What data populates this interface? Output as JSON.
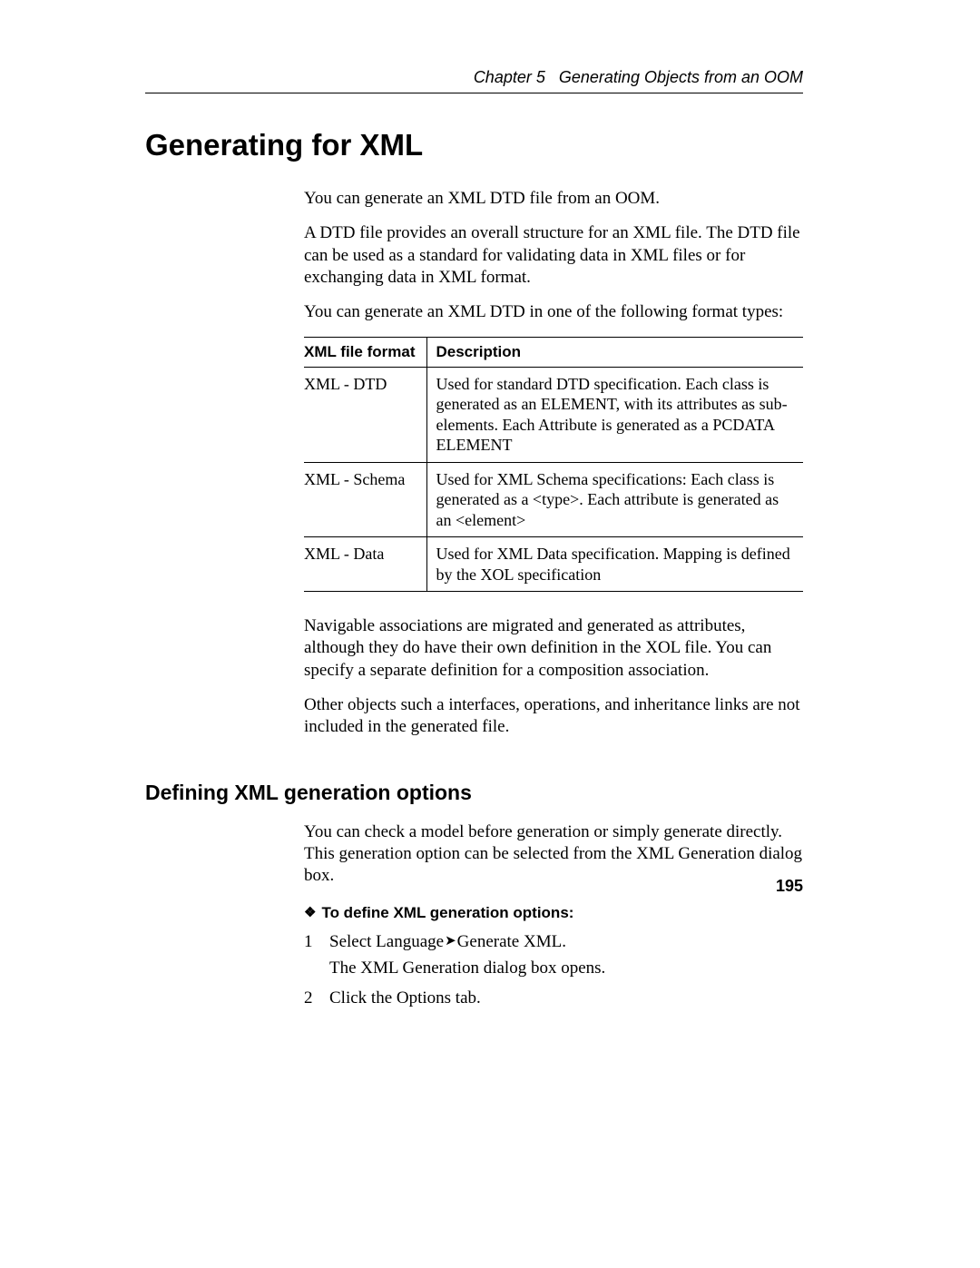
{
  "header": {
    "chapter_label": "Chapter 5",
    "chapter_title": "Generating Objects from an OOM"
  },
  "title": "Generating for XML",
  "paragraphs": {
    "p1": "You can generate an XML DTD file from an OOM.",
    "p2": "A DTD file provides an overall structure for an XML file. The DTD file can be used as a standard for validating data in XML files or for exchanging data in XML format.",
    "p3": "You can generate an XML DTD in one of the following format types:",
    "p4": "Navigable associations are migrated and generated as attributes, although they do have their own definition in the XOL file. You can specify a separate definition for a composition association.",
    "p5": "Other objects such a interfaces, operations, and inheritance links are not included in the generated file."
  },
  "table": {
    "header_format": "XML file format",
    "header_desc": "Description",
    "rows": [
      {
        "format": "XML - DTD",
        "desc": "Used for standard DTD specification. Each class is generated as an ELEMENT, with its attributes as sub-elements. Each Attribute is generated as a PCDATA ELEMENT"
      },
      {
        "format": "XML - Schema",
        "desc": "Used for XML Schema specifications: Each class is generated as a <type>. Each attribute is generated as an <element>"
      },
      {
        "format": "XML - Data",
        "desc": "Used for XML Data specification. Mapping is defined by the XOL specification"
      }
    ]
  },
  "section2": {
    "heading": "Defining XML generation options",
    "intro": "You can check a model before generation or simply generate directly. This generation option can be selected from the XML Generation dialog box.",
    "task_heading": "To define XML generation options:",
    "step1_pre": "Select Language",
    "step1_post": "Generate XML.",
    "step1_sub": "The XML Generation dialog box opens.",
    "step2": "Click the Options tab."
  },
  "page_number": "195"
}
